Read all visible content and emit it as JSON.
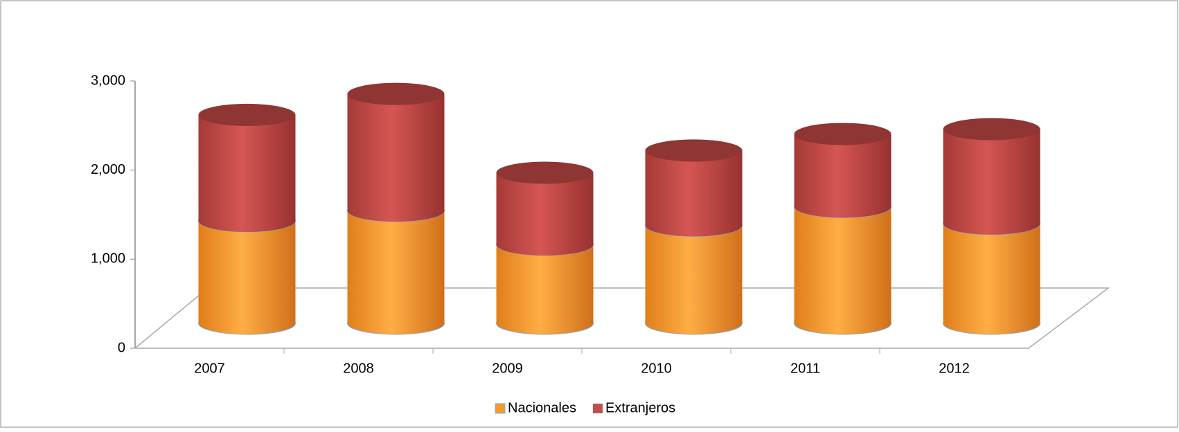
{
  "chart_data": {
    "type": "bar3d_stacked",
    "categories": [
      "2007",
      "2008",
      "2009",
      "2010",
      "2011",
      "2012"
    ],
    "series": [
      {
        "name": "Nacionales",
        "color": "#f79a2e",
        "values": [
          1150,
          1265,
          885,
          1100,
          1310,
          1120
        ]
      },
      {
        "name": "Extranjeros",
        "color": "#c0504d",
        "values": [
          1190,
          1310,
          805,
          840,
          815,
          1060
        ]
      }
    ],
    "ylim": [
      0,
      3000
    ],
    "yticks": [
      0,
      {
        "value": 1000,
        "label": "1,000"
      },
      {
        "value": 2000,
        "label": "2,000"
      },
      {
        "value": 3000,
        "label": "3,000"
      }
    ],
    "grid": false,
    "legend": "bottom"
  }
}
